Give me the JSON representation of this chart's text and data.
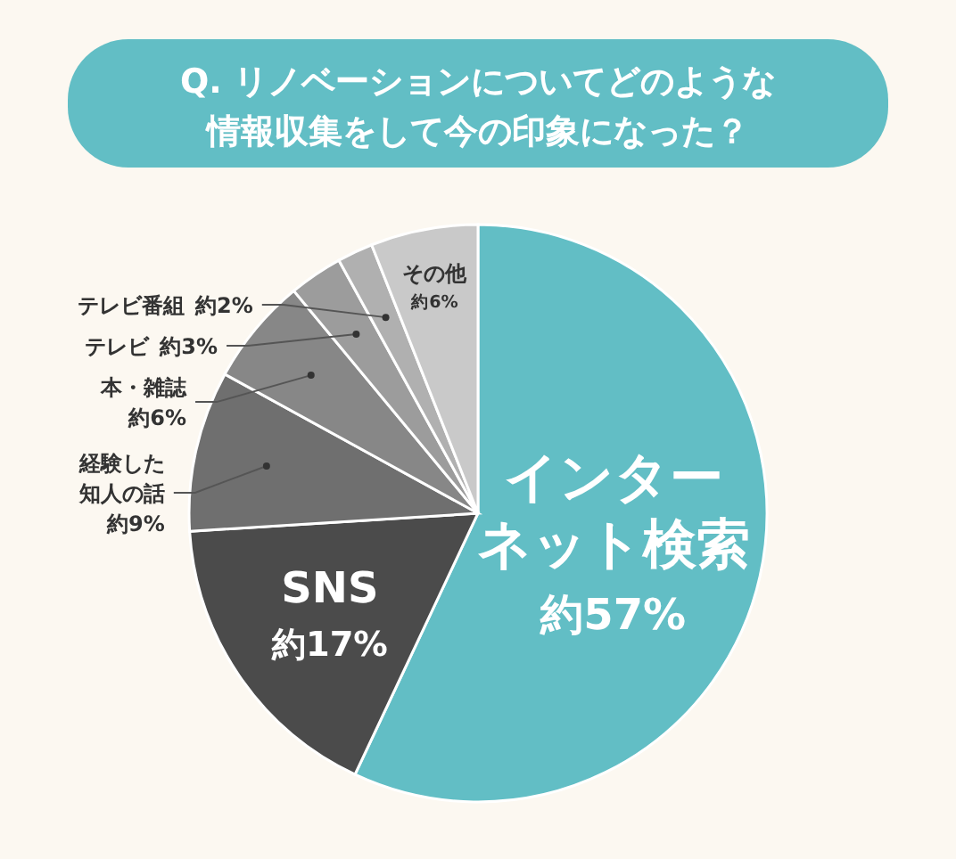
{
  "chart_data": {
    "type": "pie",
    "title": "Q. リノベーションについてどのような情報収集をして今の印象になった？",
    "categories": [
      "インターネット検索",
      "SNS",
      "経験した知人の話",
      "本・雑誌",
      "テレビ",
      "テレビ番組",
      "その他"
    ],
    "values": [
      57,
      17,
      9,
      6,
      3,
      2,
      6
    ],
    "value_labels": [
      "約57%",
      "約17%",
      "約9%",
      "約6%",
      "約3%",
      "約2%",
      "約6%"
    ],
    "colors": [
      "#62bec5",
      "#4b4b4b",
      "#6f6f6f",
      "#878787",
      "#9c9c9c",
      "#b0b0b0",
      "#c9c9c9"
    ]
  }
}
